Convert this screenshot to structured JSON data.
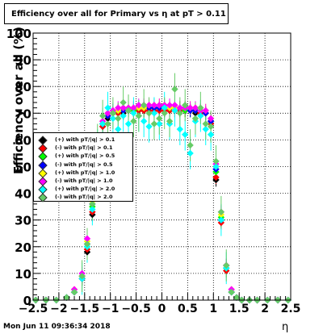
{
  "title": "Efficiency over all for Primary vs   η at pT > 0.11",
  "footer": "Mon Jun 11 09:36:34 2018",
  "chart_data": {
    "type": "scatter",
    "title": "Efficiency over all for Primary vs   η at pT > 0.11",
    "xlabel": "η",
    "ylabel": "Efficiency over all (%)",
    "xlim": [
      -2.5,
      2.5
    ],
    "ylim": [
      0,
      100
    ],
    "x_ticks": [
      "−2.5",
      "−2",
      "−1.5",
      "−1",
      "−0.5",
      "0",
      "0.5",
      "1",
      "1.5",
      "2",
      "2.5"
    ],
    "y_ticks": [
      "0",
      "10",
      "20",
      "30",
      "40",
      "50",
      "60",
      "70",
      "80",
      "90",
      "100"
    ],
    "grid": true,
    "legend_position": "middle-left",
    "series": [
      {
        "name": "(+) with pT/|q| > 0.1",
        "color": "#000000",
        "x": [
          -2.45,
          -2.25,
          -2.05,
          -1.85,
          -1.7,
          -1.55,
          -1.45,
          -1.35,
          -1.25,
          -1.15,
          -1.05,
          -0.95,
          -0.85,
          -0.75,
          -0.65,
          -0.55,
          -0.45,
          -0.35,
          -0.25,
          -0.15,
          -0.05,
          0.05,
          0.15,
          0.25,
          0.35,
          0.45,
          0.55,
          0.65,
          0.75,
          0.85,
          0.95,
          1.05,
          1.15,
          1.25,
          1.35,
          1.45,
          1.55,
          1.7,
          1.85,
          2.05,
          2.25,
          2.45
        ],
        "y": [
          0,
          0,
          0,
          1,
          3,
          8,
          18,
          32,
          55,
          65,
          68,
          70,
          70,
          70,
          71,
          71,
          71,
          71,
          71,
          71,
          71,
          71,
          71,
          71,
          71,
          71,
          71,
          70,
          70,
          70,
          67,
          45,
          30,
          12,
          3,
          1,
          0,
          0,
          0,
          0,
          0,
          0
        ]
      },
      {
        "name": "(-) with pT/|q| > 0.1",
        "color": "#ff0000",
        "x": [
          -2.45,
          -2.25,
          -2.05,
          -1.85,
          -1.7,
          -1.55,
          -1.45,
          -1.35,
          -1.25,
          -1.15,
          -1.05,
          -0.95,
          -0.85,
          -0.75,
          -0.65,
          -0.55,
          -0.45,
          -0.35,
          -0.25,
          -0.15,
          -0.05,
          0.05,
          0.15,
          0.25,
          0.35,
          0.45,
          0.55,
          0.65,
          0.75,
          0.85,
          0.95,
          1.05,
          1.15,
          1.25,
          1.35,
          1.45,
          1.55,
          1.7,
          1.85,
          2.05,
          2.25,
          2.45
        ],
        "y": [
          0,
          0,
          0,
          1,
          3,
          8,
          19,
          33,
          56,
          65,
          69,
          70,
          70,
          71,
          71,
          71,
          71,
          71,
          71,
          71,
          71,
          71,
          71,
          71,
          71,
          71,
          71,
          71,
          70,
          70,
          66,
          46,
          29,
          11,
          3,
          1,
          0,
          0,
          0,
          0,
          0,
          0
        ]
      },
      {
        "name": "(+) with pT/|q| > 0.5",
        "color": "#00ff00",
        "x": [
          -2.45,
          -2.25,
          -2.05,
          -1.85,
          -1.7,
          -1.55,
          -1.45,
          -1.35,
          -1.25,
          -1.15,
          -1.05,
          -0.95,
          -0.85,
          -0.75,
          -0.65,
          -0.55,
          -0.45,
          -0.35,
          -0.25,
          -0.15,
          -0.05,
          0.05,
          0.15,
          0.25,
          0.35,
          0.45,
          0.55,
          0.65,
          0.75,
          0.85,
          0.95,
          1.05,
          1.15,
          1.25,
          1.35,
          1.45,
          1.55,
          1.7,
          1.85,
          2.05,
          2.25,
          2.45
        ],
        "y": [
          0,
          0,
          0,
          1,
          3,
          9,
          20,
          35,
          57,
          66,
          69,
          70,
          71,
          71,
          71,
          71,
          72,
          72,
          72,
          72,
          72,
          72,
          72,
          72,
          72,
          71,
          71,
          71,
          71,
          70,
          67,
          48,
          31,
          12,
          3,
          1,
          0,
          0,
          0,
          0,
          0,
          0
        ]
      },
      {
        "name": "(-) with pT/|q| > 0.5",
        "color": "#0000ff",
        "x": [
          -2.45,
          -2.25,
          -2.05,
          -1.85,
          -1.7,
          -1.55,
          -1.45,
          -1.35,
          -1.25,
          -1.15,
          -1.05,
          -0.95,
          -0.85,
          -0.75,
          -0.65,
          -0.55,
          -0.45,
          -0.35,
          -0.25,
          -0.15,
          -0.05,
          0.05,
          0.15,
          0.25,
          0.35,
          0.45,
          0.55,
          0.65,
          0.75,
          0.85,
          0.95,
          1.05,
          1.15,
          1.25,
          1.35,
          1.45,
          1.55,
          1.7,
          1.85,
          2.05,
          2.25,
          2.45
        ],
        "y": [
          0,
          0,
          0,
          1,
          3,
          9,
          21,
          36,
          58,
          66,
          69,
          71,
          71,
          71,
          71,
          72,
          72,
          72,
          72,
          72,
          72,
          72,
          72,
          72,
          72,
          72,
          71,
          71,
          71,
          70,
          67,
          49,
          30,
          13,
          3,
          1,
          0,
          0,
          0,
          0,
          0,
          0
        ]
      },
      {
        "name": "(+) with pT/|q| > 1.0",
        "color": "#ffff00",
        "x": [
          -2.45,
          -2.25,
          -2.05,
          -1.85,
          -1.7,
          -1.55,
          -1.45,
          -1.35,
          -1.25,
          -1.15,
          -1.05,
          -0.95,
          -0.85,
          -0.75,
          -0.65,
          -0.55,
          -0.45,
          -0.35,
          -0.25,
          -0.15,
          -0.05,
          0.05,
          0.15,
          0.25,
          0.35,
          0.45,
          0.55,
          0.65,
          0.75,
          0.85,
          0.95,
          1.05,
          1.15,
          1.25,
          1.35,
          1.45,
          1.55,
          1.7,
          1.85,
          2.05,
          2.25,
          2.45
        ],
        "y": [
          0,
          0,
          0,
          1,
          4,
          9,
          22,
          37,
          59,
          67,
          70,
          71,
          71,
          72,
          72,
          72,
          72,
          72,
          73,
          73,
          73,
          73,
          72,
          72,
          72,
          72,
          72,
          72,
          71,
          71,
          68,
          50,
          32,
          13,
          4,
          1,
          0,
          0,
          0,
          0,
          0,
          0
        ]
      },
      {
        "name": "(-) with pT/|q| > 1.0",
        "color": "#ff00ff",
        "x": [
          -2.45,
          -2.25,
          -2.05,
          -1.85,
          -1.7,
          -1.55,
          -1.45,
          -1.35,
          -1.25,
          -1.15,
          -1.05,
          -0.95,
          -0.85,
          -0.75,
          -0.65,
          -0.55,
          -0.45,
          -0.35,
          -0.25,
          -0.15,
          -0.05,
          0.05,
          0.15,
          0.25,
          0.35,
          0.45,
          0.55,
          0.65,
          0.75,
          0.85,
          0.95,
          1.05,
          1.15,
          1.25,
          1.35,
          1.45,
          1.55,
          1.7,
          1.85,
          2.05,
          2.25,
          2.45
        ],
        "y": [
          0,
          0,
          0,
          1,
          4,
          10,
          23,
          38,
          60,
          67,
          70,
          71,
          72,
          72,
          72,
          72,
          73,
          73,
          73,
          73,
          73,
          73,
          73,
          73,
          72,
          72,
          72,
          72,
          71,
          71,
          68,
          51,
          33,
          13,
          4,
          1,
          0,
          0,
          0,
          0,
          0,
          0
        ]
      },
      {
        "name": "(+) with pT/|q| > 2.0",
        "color": "#00ffff",
        "x": [
          -2.45,
          -2.25,
          -2.05,
          -1.85,
          -1.7,
          -1.55,
          -1.45,
          -1.35,
          -1.25,
          -1.15,
          -1.05,
          -0.95,
          -0.85,
          -0.75,
          -0.65,
          -0.55,
          -0.45,
          -0.35,
          -0.25,
          -0.15,
          -0.05,
          0.05,
          0.15,
          0.25,
          0.35,
          0.45,
          0.55,
          0.65,
          0.75,
          0.85,
          0.95,
          1.05,
          1.15,
          1.25,
          1.35,
          1.45,
          1.55,
          1.7,
          1.85,
          2.05,
          2.25,
          2.45
        ],
        "y": [
          0,
          0,
          0,
          1,
          3,
          8,
          20,
          34,
          58,
          66,
          72,
          68,
          64,
          69,
          66,
          70,
          69,
          67,
          65,
          70,
          66,
          72,
          66,
          71,
          64,
          62,
          55,
          67,
          69,
          64,
          62,
          50,
          30,
          12,
          3,
          1,
          0,
          0,
          0,
          0,
          0,
          0
        ]
      },
      {
        "name": "(-) with pT/|q| > 2.0",
        "color": "#66cc66",
        "x": [
          -2.45,
          -2.25,
          -2.05,
          -1.85,
          -1.7,
          -1.55,
          -1.45,
          -1.35,
          -1.25,
          -1.15,
          -1.05,
          -0.95,
          -0.85,
          -0.75,
          -0.65,
          -0.55,
          -0.45,
          -0.35,
          -0.25,
          -0.15,
          -0.05,
          0.05,
          0.15,
          0.25,
          0.35,
          0.45,
          0.55,
          0.65,
          0.75,
          0.85,
          0.95,
          1.05,
          1.15,
          1.25,
          1.35,
          1.45,
          1.55,
          1.7,
          1.85,
          2.05,
          2.25,
          2.45
        ],
        "y": [
          0,
          0,
          0,
          1,
          3,
          9,
          21,
          36,
          60,
          69,
          66,
          70,
          68,
          74,
          71,
          67,
          69,
          73,
          70,
          66,
          68,
          70,
          67,
          79,
          70,
          73,
          58,
          68,
          72,
          66,
          65,
          52,
          33,
          13,
          3,
          1,
          0,
          0,
          0,
          0,
          0,
          0
        ]
      }
    ]
  }
}
